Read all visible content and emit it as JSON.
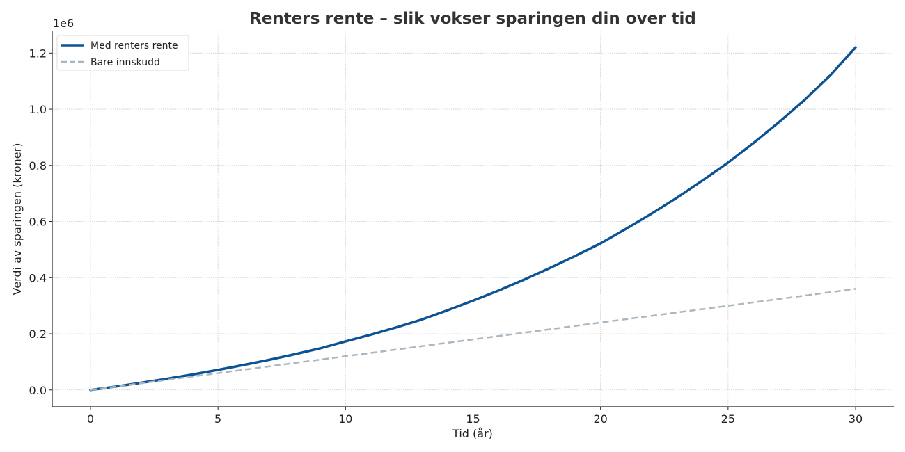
{
  "chart_data": {
    "type": "line",
    "title": "Renters rente – slik vokser sparingen din over tid",
    "xlabel": "Tid (år)",
    "ylabel": "Verdi av sparingen (kroner)",
    "y_offset_label": "1e6",
    "xlim": [
      -1.5,
      31.5
    ],
    "ylim": [
      -60000,
      1280000
    ],
    "x_ticks": [
      0,
      5,
      10,
      15,
      20,
      25,
      30
    ],
    "x_tick_labels": [
      "0",
      "5",
      "10",
      "15",
      "20",
      "25",
      "30"
    ],
    "y_ticks": [
      0,
      200000,
      400000,
      600000,
      800000,
      1000000,
      1200000
    ],
    "y_tick_labels": [
      "0.0",
      "0.2",
      "0.4",
      "0.6",
      "0.8",
      "1.0",
      "1.2"
    ],
    "grid": true,
    "legend_position": "top-left",
    "x": [
      0,
      1,
      2,
      3,
      4,
      5,
      6,
      7,
      8,
      9,
      10,
      11,
      12,
      13,
      14,
      15,
      16,
      17,
      18,
      19,
      20,
      21,
      22,
      23,
      24,
      25,
      26,
      27,
      28,
      29,
      30
    ],
    "series": [
      {
        "name": "Med renters rente",
        "color": "#0b5394",
        "style": "solid",
        "values": [
          0,
          12400,
          25700,
          40000,
          55200,
          71500,
          88800,
          107300,
          127000,
          148000,
          173000,
          197000,
          223000,
          251000,
          284000,
          318000,
          354000,
          393000,
          434000,
          477000,
          522000,
          574000,
          628000,
          685000,
          746000,
          810000,
          880000,
          954000,
          1033000,
          1120000,
          1220000
        ]
      },
      {
        "name": "Bare innskudd",
        "color": "#aab7c0",
        "style": "dashed",
        "values": [
          0,
          12000,
          24000,
          36000,
          48000,
          60000,
          72000,
          84000,
          96000,
          108000,
          120000,
          132000,
          144000,
          156000,
          168000,
          180000,
          192000,
          204000,
          216000,
          228000,
          240000,
          252000,
          264000,
          276000,
          288000,
          300000,
          312000,
          324000,
          336000,
          348000,
          360000
        ]
      }
    ]
  }
}
